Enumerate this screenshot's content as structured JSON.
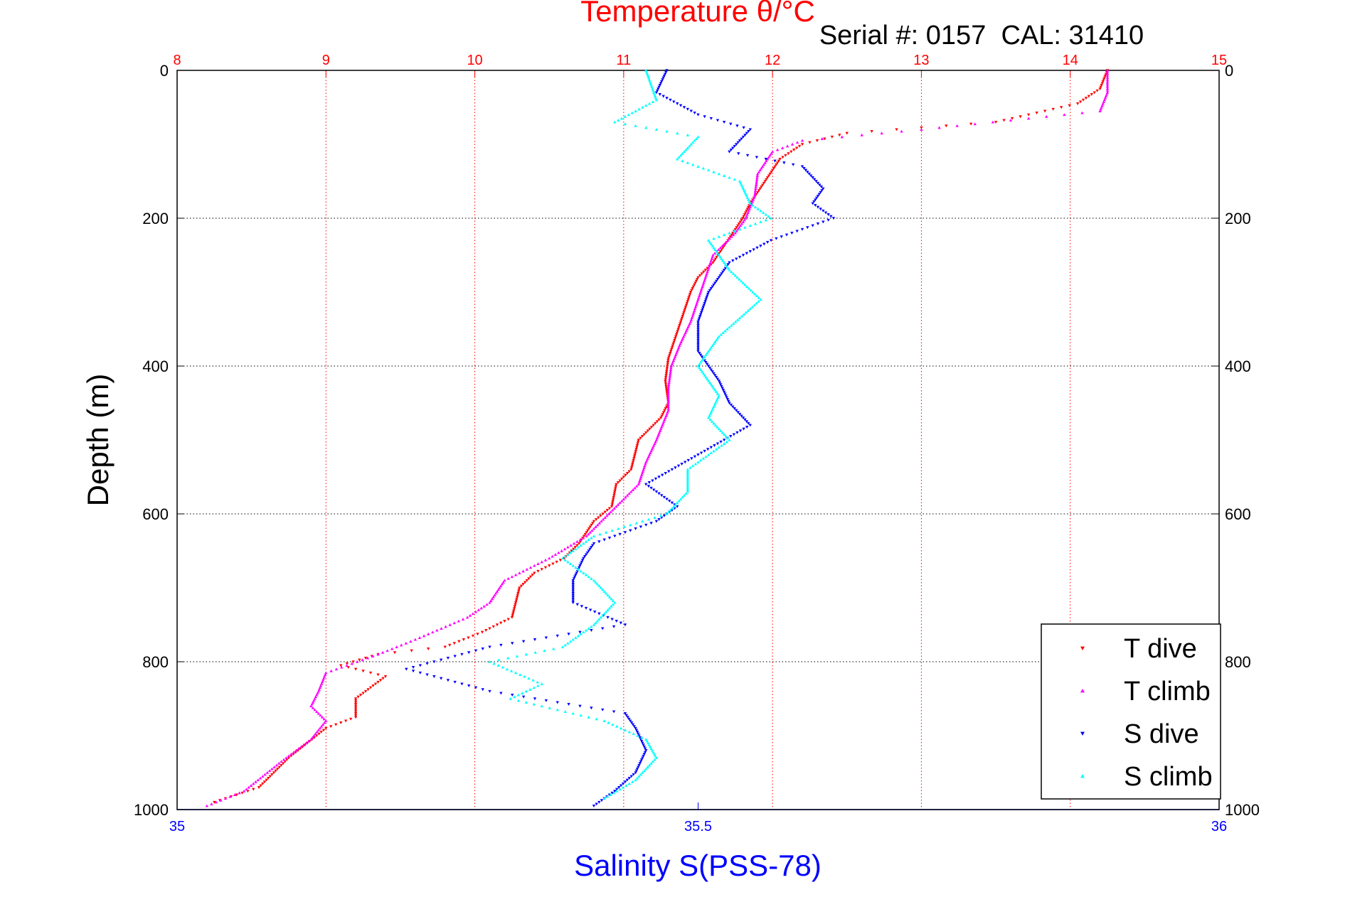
{
  "chart_data": {
    "type": "scatter",
    "title": "Temperature θ/°C",
    "annotation": "Serial #: 0157  CAL: 31410",
    "ylabel": "Depth (m)",
    "xlabel_bottom": "Salinity S(PSS-78)",
    "top_axis": {
      "label": "Temperature θ/°C",
      "range": [
        8,
        15
      ],
      "ticks": [
        "8",
        "9",
        "10",
        "11",
        "12",
        "13",
        "14",
        "15"
      ],
      "color": "#ff0000"
    },
    "bottom_axis": {
      "label": "Salinity S(PSS-78)",
      "range": [
        35,
        36
      ],
      "ticks": [
        "35",
        "35.5",
        "36"
      ],
      "color": "#0000ff"
    },
    "y_axis": {
      "range": [
        0,
        1000
      ],
      "reversed": true,
      "ticks": [
        "0",
        "200",
        "400",
        "600",
        "800",
        "1000"
      ]
    },
    "grid": true,
    "legend_placement": "bottom-right",
    "series": [
      {
        "name": "T dive",
        "axis": "temperature",
        "color": "#ff0000",
        "marker": "triangle-down",
        "points": [
          [
            14.25,
            0
          ],
          [
            14.2,
            25
          ],
          [
            14.05,
            45
          ],
          [
            13.5,
            70
          ],
          [
            12.5,
            85
          ],
          [
            12.2,
            100
          ],
          [
            12.05,
            120
          ],
          [
            11.95,
            150
          ],
          [
            11.85,
            180
          ],
          [
            11.8,
            200
          ],
          [
            11.7,
            230
          ],
          [
            11.6,
            260
          ],
          [
            11.5,
            280
          ],
          [
            11.45,
            300
          ],
          [
            11.4,
            330
          ],
          [
            11.35,
            360
          ],
          [
            11.3,
            390
          ],
          [
            11.28,
            420
          ],
          [
            11.3,
            450
          ],
          [
            11.25,
            470
          ],
          [
            11.1,
            500
          ],
          [
            11.05,
            540
          ],
          [
            10.95,
            560
          ],
          [
            10.92,
            590
          ],
          [
            10.8,
            610
          ],
          [
            10.7,
            640
          ],
          [
            10.6,
            660
          ],
          [
            10.4,
            680
          ],
          [
            10.3,
            700
          ],
          [
            10.25,
            740
          ],
          [
            10.05,
            760
          ],
          [
            9.8,
            780
          ],
          [
            9.35,
            790
          ],
          [
            9.1,
            805
          ],
          [
            9.4,
            820
          ],
          [
            9.2,
            850
          ],
          [
            9.2,
            875
          ],
          [
            9.0,
            890
          ],
          [
            8.75,
            930
          ],
          [
            8.55,
            970
          ],
          [
            8.25,
            990
          ]
        ]
      },
      {
        "name": "T climb",
        "axis": "temperature",
        "color": "#ff00ff",
        "marker": "triangle-up",
        "points": [
          [
            14.25,
            0
          ],
          [
            14.25,
            30
          ],
          [
            14.2,
            55
          ],
          [
            13.0,
            80
          ],
          [
            12.2,
            95
          ],
          [
            12.0,
            110
          ],
          [
            11.9,
            140
          ],
          [
            11.88,
            170
          ],
          [
            11.82,
            200
          ],
          [
            11.75,
            220
          ],
          [
            11.6,
            250
          ],
          [
            11.55,
            280
          ],
          [
            11.5,
            310
          ],
          [
            11.45,
            340
          ],
          [
            11.38,
            370
          ],
          [
            11.32,
            400
          ],
          [
            11.3,
            430
          ],
          [
            11.3,
            460
          ],
          [
            11.22,
            500
          ],
          [
            11.15,
            530
          ],
          [
            11.1,
            560
          ],
          [
            11.0,
            580
          ],
          [
            10.9,
            600
          ],
          [
            10.75,
            630
          ],
          [
            10.5,
            660
          ],
          [
            10.2,
            690
          ],
          [
            10.1,
            720
          ],
          [
            9.95,
            740
          ],
          [
            9.6,
            770
          ],
          [
            9.35,
            790
          ],
          [
            9.0,
            815
          ],
          [
            8.95,
            840
          ],
          [
            8.9,
            860
          ],
          [
            9.0,
            880
          ],
          [
            8.9,
            905
          ],
          [
            8.7,
            935
          ],
          [
            8.45,
            975
          ],
          [
            8.2,
            995
          ]
        ]
      },
      {
        "name": "S dive",
        "axis": "salinity",
        "color": "#0000ff",
        "marker": "triangle-down",
        "points": [
          [
            35.47,
            0
          ],
          [
            35.46,
            30
          ],
          [
            35.5,
            60
          ],
          [
            35.55,
            80
          ],
          [
            35.53,
            110
          ],
          [
            35.6,
            130
          ],
          [
            35.62,
            160
          ],
          [
            35.61,
            180
          ],
          [
            35.63,
            200
          ],
          [
            35.57,
            230
          ],
          [
            35.53,
            260
          ],
          [
            35.51,
            300
          ],
          [
            35.5,
            340
          ],
          [
            35.5,
            380
          ],
          [
            35.52,
            420
          ],
          [
            35.53,
            450
          ],
          [
            35.55,
            480
          ],
          [
            35.5,
            520
          ],
          [
            35.45,
            560
          ],
          [
            35.48,
            590
          ],
          [
            35.46,
            610
          ],
          [
            35.4,
            640
          ],
          [
            35.39,
            660
          ],
          [
            35.38,
            690
          ],
          [
            35.38,
            720
          ],
          [
            35.43,
            750
          ],
          [
            35.3,
            780
          ],
          [
            35.22,
            810
          ],
          [
            35.3,
            840
          ],
          [
            35.43,
            870
          ],
          [
            35.44,
            890
          ],
          [
            35.45,
            920
          ],
          [
            35.44,
            950
          ],
          [
            35.42,
            975
          ],
          [
            35.4,
            995
          ]
        ]
      },
      {
        "name": "S climb",
        "axis": "salinity",
        "color": "#00ffff",
        "marker": "triangle-up",
        "points": [
          [
            35.45,
            0
          ],
          [
            35.46,
            40
          ],
          [
            35.42,
            70
          ],
          [
            35.5,
            90
          ],
          [
            35.48,
            120
          ],
          [
            35.54,
            150
          ],
          [
            35.55,
            180
          ],
          [
            35.57,
            200
          ],
          [
            35.51,
            230
          ],
          [
            35.53,
            270
          ],
          [
            35.56,
            310
          ],
          [
            35.52,
            360
          ],
          [
            35.5,
            400
          ],
          [
            35.52,
            440
          ],
          [
            35.51,
            470
          ],
          [
            35.53,
            500
          ],
          [
            35.49,
            540
          ],
          [
            35.49,
            570
          ],
          [
            35.47,
            600
          ],
          [
            35.4,
            630
          ],
          [
            35.37,
            660
          ],
          [
            35.4,
            690
          ],
          [
            35.42,
            720
          ],
          [
            35.4,
            750
          ],
          [
            35.37,
            780
          ],
          [
            35.3,
            800
          ],
          [
            35.35,
            830
          ],
          [
            35.32,
            850
          ],
          [
            35.41,
            880
          ],
          [
            35.45,
            905
          ],
          [
            35.46,
            930
          ],
          [
            35.44,
            960
          ],
          [
            35.41,
            985
          ]
        ]
      }
    ]
  }
}
